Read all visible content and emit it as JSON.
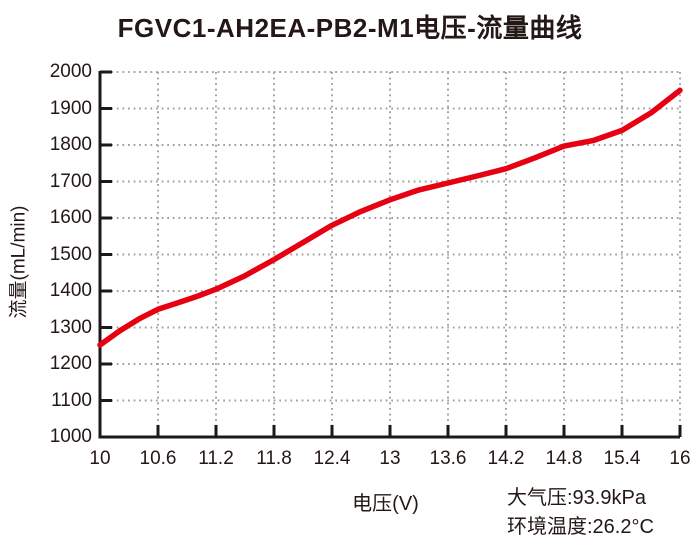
{
  "chart_data": {
    "type": "line",
    "title": "FGVC1-AH2EA-PB2-M1电压-流量曲线",
    "xlabel": "电压(V)",
    "ylabel": "流量(mL/min)",
    "xlim": [
      10,
      16
    ],
    "ylim": [
      1000,
      2000
    ],
    "x_ticks": [
      10,
      10.6,
      11.2,
      11.8,
      12.4,
      13,
      13.6,
      14.2,
      14.8,
      15.4,
      16
    ],
    "x_tick_labels": [
      "10",
      "10.6",
      "11.2",
      "11.8",
      "12.4",
      "13",
      "13.6",
      "14.2",
      "14.8",
      "15.4",
      "16"
    ],
    "y_ticks": [
      1000,
      1100,
      1200,
      1300,
      1400,
      1500,
      1600,
      1700,
      1800,
      1900,
      2000
    ],
    "y_tick_labels": [
      "1000",
      "1100",
      "1200",
      "1300",
      "1400",
      "1500",
      "1600",
      "1700",
      "1800",
      "1900",
      "2000"
    ],
    "grid": "dotted, gray, on (top and right boundaries are dotted gridlines)",
    "legend": "none",
    "series": [
      {
        "name": "电压-流量曲线",
        "color": "#e60012",
        "x": [
          10,
          10.2,
          10.4,
          10.6,
          10.8,
          11.0,
          11.2,
          11.5,
          11.8,
          12.1,
          12.4,
          12.7,
          13.0,
          13.3,
          13.6,
          13.9,
          14.2,
          14.5,
          14.8,
          15.1,
          15.4,
          15.7,
          16.0
        ],
        "y": [
          1252,
          1290,
          1323,
          1350,
          1367,
          1385,
          1405,
          1442,
          1486,
          1533,
          1580,
          1618,
          1650,
          1677,
          1696,
          1715,
          1735,
          1765,
          1797,
          1812,
          1840,
          1888,
          1950
        ]
      }
    ],
    "annotations": [
      "大气压:93.9kPa",
      "环境温度:26.2°C"
    ]
  },
  "footer": {
    "atmospheric_pressure": "大气压:93.9kPa",
    "ambient_temperature": "环境温度:26.2°C"
  },
  "colors": {
    "curve": "#e60012",
    "text": "#231815",
    "grid": "#a3a3a3",
    "axis": "#1a1a1a",
    "background": "#ffffff"
  }
}
